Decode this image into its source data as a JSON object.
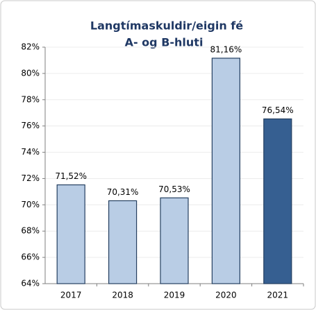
{
  "chart_data": {
    "type": "bar",
    "title": "Langtímaskuldir/eigin fé",
    "subtitle": "A- og B-hluti",
    "categories": [
      "2017",
      "2018",
      "2019",
      "2020",
      "2021"
    ],
    "values": [
      71.52,
      70.31,
      70.53,
      81.16,
      76.54
    ],
    "value_labels": [
      "71,52%",
      "70,31%",
      "70,53%",
      "81,16%",
      "76,54%"
    ],
    "colors": [
      "#b9cde5",
      "#b9cde5",
      "#b9cde5",
      "#b9cde5",
      "#365f91"
    ],
    "ylim": [
      64,
      82
    ],
    "yticks": [
      {
        "value": 64,
        "label": "64%"
      },
      {
        "value": 66,
        "label": "66%"
      },
      {
        "value": 68,
        "label": "68%"
      },
      {
        "value": 70,
        "label": "70%"
      },
      {
        "value": 72,
        "label": "72%"
      },
      {
        "value": 74,
        "label": "74%"
      },
      {
        "value": 76,
        "label": "76%"
      },
      {
        "value": 78,
        "label": "78%"
      },
      {
        "value": 80,
        "label": "80%"
      },
      {
        "value": 82,
        "label": "82%"
      }
    ],
    "grid": true
  }
}
